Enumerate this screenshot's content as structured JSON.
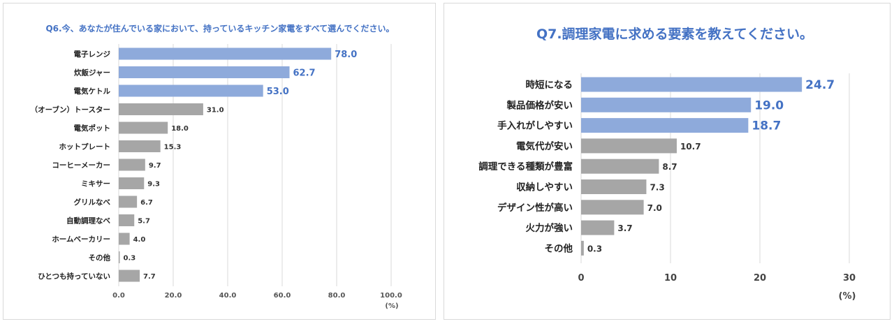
{
  "chart_data": [
    {
      "type": "bar",
      "orientation": "horizontal",
      "title": "Q6.今、あなたが住んでいる家において、持っているキッチン家電をすべて選んでください。",
      "unit_label": "(%)",
      "categories": [
        "電子レンジ",
        "炊飯ジャー",
        "電気ケトル",
        "（オーブン）トースター",
        "電気ポット",
        "ホットプレート",
        "コーヒーメーカー",
        "ミキサー",
        "グリルなべ",
        "自動調理なべ",
        "ホームベーカリー",
        "その他",
        "ひとつも持っていない"
      ],
      "values": [
        78.0,
        62.7,
        53.0,
        31.0,
        18.0,
        15.3,
        9.7,
        9.3,
        6.7,
        5.7,
        4.0,
        0.3,
        7.7
      ],
      "value_labels": [
        "78.0",
        "62.7",
        "53.0",
        "31.0",
        "18.0",
        "15.3",
        "9.7",
        "9.3",
        "6.7",
        "5.7",
        "4.0",
        "0.3",
        "7.7"
      ],
      "highlight_count": 3,
      "xlim": [
        0,
        100
      ],
      "xticks": [
        "0.0",
        "20.0",
        "40.0",
        "60.0",
        "80.0",
        "100.0"
      ],
      "grid": true,
      "colors": {
        "highlight": "#8eaadb",
        "normal": "#a6a6a6",
        "highlight_label": "#4472c4",
        "normal_label": "#333333"
      }
    },
    {
      "type": "bar",
      "orientation": "horizontal",
      "title": "Q7.調理家電に求める要素を教えてください。",
      "unit_label": "(%)",
      "categories": [
        "時短になる",
        "製品価格が安い",
        "手入れがしやすい",
        "電気代が安い",
        "調理できる種類が豊富",
        "収納しやすい",
        "デザイン性が高い",
        "火力が強い",
        "その他"
      ],
      "values": [
        24.7,
        19.0,
        18.7,
        10.7,
        8.7,
        7.3,
        7.0,
        3.7,
        0.3
      ],
      "value_labels": [
        "24.7",
        "19.0",
        "18.7",
        "10.7",
        "8.7",
        "7.3",
        "7.0",
        "3.7",
        "0.3"
      ],
      "highlight_count": 3,
      "xlim": [
        0,
        30
      ],
      "xticks": [
        "0",
        "10",
        "20",
        "30"
      ],
      "grid": true,
      "colors": {
        "highlight": "#8eaadb",
        "normal": "#a6a6a6",
        "highlight_label": "#4472c4",
        "normal_label": "#333333"
      }
    }
  ]
}
